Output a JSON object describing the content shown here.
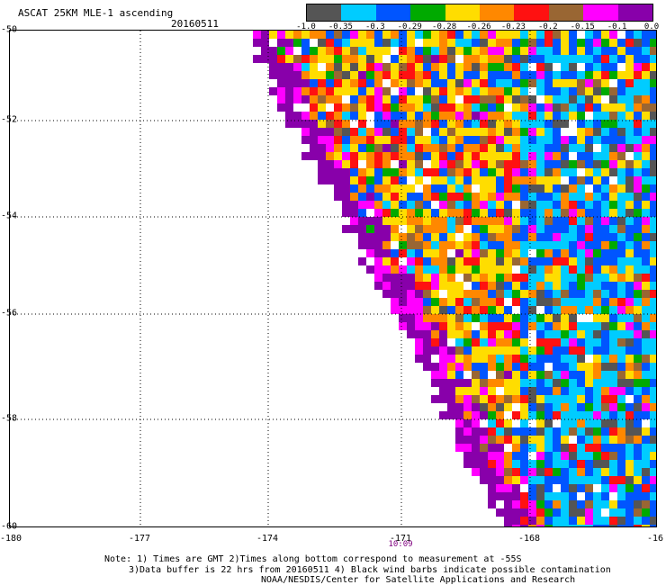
{
  "header": {
    "title": "ASCAT 25KM MLE-1 ascending",
    "date": "20160511"
  },
  "colorbar": {
    "colors": [
      "#555555",
      "#00ccff",
      "#0055ff",
      "#00aa00",
      "#ffdd00",
      "#ff8800",
      "#ff1111",
      "#996633",
      "#ff00ff",
      "#8800aa"
    ],
    "ticks": [
      "-1.0",
      "-0.35",
      "-0.3",
      "-0.29",
      "-0.28",
      "-0.26",
      "-0.23",
      "-0.2",
      "-0.15",
      "-0.1",
      "0.0"
    ]
  },
  "map": {
    "lat_labels": [
      "-50",
      "-52",
      "-54",
      "-56",
      "-58",
      "-60"
    ],
    "lon_labels": [
      "-180",
      "-177",
      "-174",
      "-171",
      "-168",
      "-16"
    ],
    "time_label": "10:09",
    "grid": "dotted"
  },
  "notes": {
    "line1": "Note: 1) Times are GMT 2)Times along bottom correspond to measurement at -55S",
    "line2": "3)Data buffer is 22 hrs from 20160511 4) Black wind barbs indicate possible contamination",
    "line3": "NOAA/NESDIS/Center for Satellite Applications and Research"
  }
}
